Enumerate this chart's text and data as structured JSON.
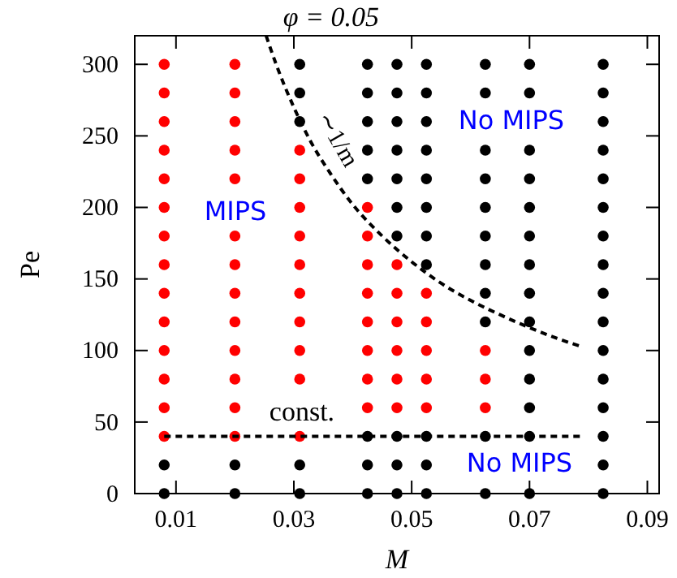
{
  "chart_data": {
    "type": "scatter",
    "xlabel": "M",
    "ylabel": "Pe",
    "xlim": [
      0.003,
      0.092
    ],
    "xticks": [
      0.01,
      0.03,
      0.05,
      0.07,
      0.09
    ],
    "ylim": [
      0,
      320
    ],
    "yticks": [
      0,
      50,
      100,
      150,
      200,
      250,
      300
    ],
    "grid": false,
    "marker": "circle",
    "annotations": [
      "φ = 0.05",
      "∼1/m",
      "const.",
      "MIPS",
      "No MIPS",
      "No MIPS"
    ],
    "series": [
      {
        "color": "#ff0000",
        "x": [
          0.008,
          0.008,
          0.008,
          0.008,
          0.008,
          0.008,
          0.008,
          0.008,
          0.008,
          0.008,
          0.008,
          0.008,
          0.008,
          0.008,
          0.02,
          0.02,
          0.02,
          0.02,
          0.02,
          0.02,
          0.02,
          0.02,
          0.02,
          0.02,
          0.02,
          0.02,
          0.02,
          0.031,
          0.031,
          0.031,
          0.031,
          0.031,
          0.031,
          0.031,
          0.031,
          0.031,
          0.031,
          0.0425,
          0.0425,
          0.0425,
          0.0425,
          0.0425,
          0.0425,
          0.0425,
          0.0425,
          0.0475,
          0.0475,
          0.0475,
          0.0475,
          0.0475,
          0.0475,
          0.0525,
          0.0525,
          0.0525,
          0.0525,
          0.0525,
          0.0625,
          0.0625,
          0.0625
        ],
        "values": [
          40,
          60,
          80,
          100,
          120,
          140,
          160,
          180,
          200,
          220,
          240,
          260,
          280,
          300,
          40,
          60,
          80,
          100,
          120,
          140,
          160,
          180,
          220,
          240,
          260,
          280,
          300,
          40,
          80,
          100,
          120,
          140,
          160,
          180,
          200,
          220,
          240,
          60,
          80,
          100,
          120,
          140,
          160,
          180,
          200,
          60,
          80,
          100,
          120,
          140,
          160,
          60,
          80,
          100,
          120,
          140,
          60,
          80,
          100
        ]
      },
      {
        "color": "#000000",
        "x": [
          0.008,
          0.008,
          0.02,
          0.02,
          0.031,
          0.031,
          0.031,
          0.031,
          0.031,
          0.0425,
          0.0425,
          0.0425,
          0.0425,
          0.0425,
          0.0425,
          0.0425,
          0.0425,
          0.0475,
          0.0475,
          0.0475,
          0.0475,
          0.0475,
          0.0475,
          0.0475,
          0.0475,
          0.0475,
          0.0475,
          0.0525,
          0.0525,
          0.0525,
          0.0525,
          0.0525,
          0.0525,
          0.0525,
          0.0525,
          0.0525,
          0.0525,
          0.0525,
          0.0625,
          0.0625,
          0.0625,
          0.0625,
          0.0625,
          0.0625,
          0.0625,
          0.0625,
          0.0625,
          0.0625,
          0.0625,
          0.07,
          0.07,
          0.07,
          0.07,
          0.07,
          0.07,
          0.07,
          0.07,
          0.07,
          0.07,
          0.07,
          0.07,
          0.07,
          0.07,
          0.0825,
          0.0825,
          0.0825,
          0.0825,
          0.0825,
          0.0825,
          0.0825,
          0.0825,
          0.0825,
          0.0825,
          0.0825,
          0.0825,
          0.0825,
          0.0825,
          0.0825,
          0.0825
        ],
        "values": [
          0,
          20,
          0,
          20,
          0,
          20,
          260,
          280,
          300,
          0,
          20,
          40,
          220,
          240,
          260,
          280,
          300,
          0,
          20,
          40,
          180,
          200,
          220,
          240,
          260,
          280,
          300,
          0,
          20,
          40,
          160,
          180,
          200,
          220,
          240,
          260,
          280,
          300,
          0,
          40,
          120,
          140,
          160,
          180,
          200,
          220,
          240,
          280,
          300,
          0,
          40,
          60,
          80,
          100,
          120,
          140,
          160,
          180,
          200,
          220,
          240,
          280,
          300,
          0,
          20,
          40,
          60,
          80,
          100,
          120,
          140,
          160,
          180,
          200,
          220,
          240,
          260,
          280,
          300
        ]
      },
      {
        "type": "line",
        "color": "#000000",
        "line_style": "dashed",
        "marker": "none",
        "x": [
          0.0253,
          0.027,
          0.03,
          0.033,
          0.036,
          0.04,
          0.045,
          0.05,
          0.055,
          0.06,
          0.065,
          0.07,
          0.075,
          0.0786
        ],
        "values": [
          320,
          300,
          270,
          245,
          225,
          202,
          180,
          162,
          147,
          135,
          125,
          116,
          108,
          103
        ]
      },
      {
        "type": "line",
        "color": "#000000",
        "line_style": "dashed",
        "marker": "none",
        "x": [
          0.008,
          0.079
        ],
        "values": [
          40,
          40
        ]
      }
    ]
  }
}
